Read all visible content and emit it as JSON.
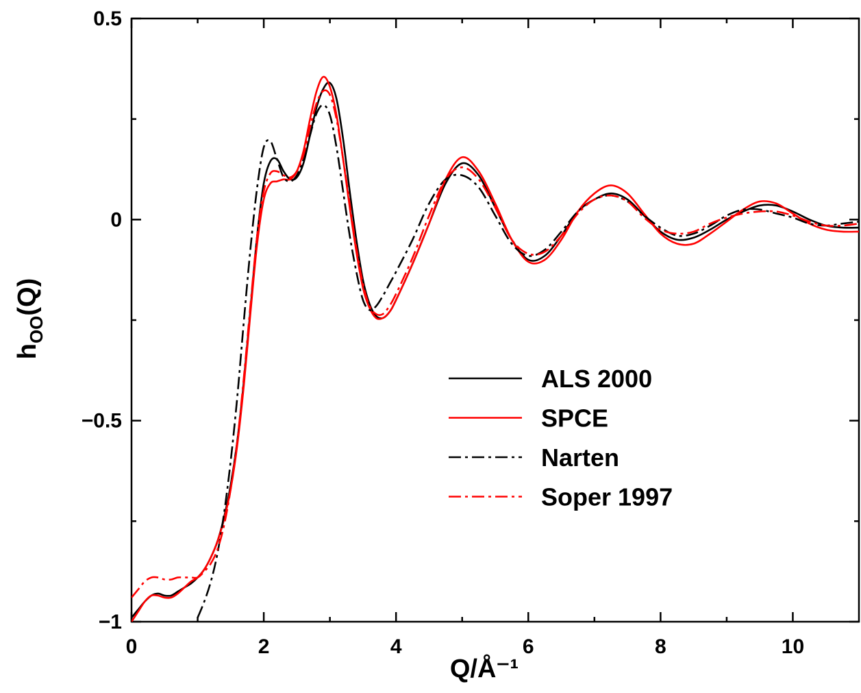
{
  "chart_data": {
    "type": "line",
    "xlabel": "Q/Å⁻¹",
    "ylabel": [
      "h",
      "OO",
      "(Q)"
    ],
    "xlim": [
      0,
      11
    ],
    "ylim": [
      -1,
      0.5
    ],
    "xticks": [
      0,
      2,
      4,
      6,
      8,
      10
    ],
    "yticks": [
      {
        "value": -1,
        "label": "−1"
      },
      {
        "value": -0.5,
        "label": "−0.5"
      },
      0,
      0.5
    ],
    "x_minor_ticks": [
      1,
      3,
      5,
      7,
      9
    ],
    "y_minor_ticks": [
      -0.75,
      -0.25,
      0.25
    ],
    "x": [
      0,
      0.1,
      0.2,
      0.3,
      0.4,
      0.5,
      0.6,
      0.7,
      0.8,
      0.9,
      1.0,
      1.1,
      1.2,
      1.3,
      1.4,
      1.5,
      1.6,
      1.7,
      1.8,
      1.9,
      2.0,
      2.1,
      2.2,
      2.3,
      2.4,
      2.5,
      2.6,
      2.7,
      2.8,
      2.9,
      3.0,
      3.1,
      3.2,
      3.3,
      3.4,
      3.5,
      3.6,
      3.7,
      3.8,
      3.9,
      4.0,
      4.25,
      4.5,
      4.75,
      5.0,
      5.25,
      5.5,
      5.75,
      6.0,
      6.25,
      6.5,
      6.75,
      7.0,
      7.25,
      7.5,
      7.75,
      8.0,
      8.25,
      8.5,
      8.75,
      9.0,
      9.25,
      9.5,
      9.75,
      10.0,
      10.25,
      10.5,
      10.75,
      11.0
    ],
    "series": [
      {
        "name": "ALS 2000",
        "color": "#000000",
        "dash": "solid",
        "values": [
          -0.99,
          -0.97,
          -0.95,
          -0.935,
          -0.93,
          -0.935,
          -0.935,
          -0.925,
          -0.915,
          -0.905,
          -0.89,
          -0.87,
          -0.84,
          -0.8,
          -0.74,
          -0.66,
          -0.55,
          -0.4,
          -0.22,
          -0.04,
          0.09,
          0.145,
          0.15,
          0.12,
          0.1,
          0.105,
          0.14,
          0.21,
          0.28,
          0.325,
          0.34,
          0.3,
          0.2,
          0.07,
          -0.05,
          -0.15,
          -0.21,
          -0.24,
          -0.245,
          -0.23,
          -0.2,
          -0.11,
          -0.01,
          0.09,
          0.14,
          0.11,
          0.03,
          -0.05,
          -0.1,
          -0.09,
          -0.04,
          0.02,
          0.05,
          0.065,
          0.05,
          0.01,
          -0.03,
          -0.05,
          -0.045,
          -0.025,
          0.0,
          0.02,
          0.035,
          0.035,
          0.02,
          0.0,
          -0.015,
          -0.02,
          -0.02
        ]
      },
      {
        "name": "SPCE",
        "color": "#ff0000",
        "dash": "solid",
        "values": [
          -1.0,
          -0.975,
          -0.95,
          -0.935,
          -0.935,
          -0.94,
          -0.94,
          -0.93,
          -0.915,
          -0.9,
          -0.89,
          -0.87,
          -0.84,
          -0.8,
          -0.745,
          -0.67,
          -0.56,
          -0.41,
          -0.23,
          -0.06,
          0.05,
          0.09,
          0.095,
          0.1,
          0.1,
          0.12,
          0.17,
          0.25,
          0.32,
          0.355,
          0.33,
          0.26,
          0.15,
          0.03,
          -0.08,
          -0.17,
          -0.22,
          -0.245,
          -0.245,
          -0.23,
          -0.2,
          -0.11,
          -0.01,
          0.1,
          0.155,
          0.12,
          0.04,
          -0.05,
          -0.105,
          -0.1,
          -0.05,
          0.02,
          0.065,
          0.085,
          0.065,
          0.015,
          -0.035,
          -0.06,
          -0.06,
          -0.035,
          -0.005,
          0.025,
          0.045,
          0.04,
          0.015,
          -0.01,
          -0.025,
          -0.03,
          -0.03
        ]
      },
      {
        "name": "Narten",
        "color": "#000000",
        "dash": "dashdot",
        "values": [
          null,
          null,
          null,
          null,
          null,
          null,
          null,
          null,
          null,
          null,
          -0.99,
          -0.95,
          -0.9,
          -0.83,
          -0.73,
          -0.6,
          -0.44,
          -0.25,
          -0.07,
          0.08,
          0.18,
          0.195,
          0.15,
          0.105,
          0.095,
          0.11,
          0.15,
          0.21,
          0.265,
          0.285,
          0.26,
          0.18,
          0.07,
          -0.04,
          -0.13,
          -0.2,
          -0.225,
          -0.215,
          -0.19,
          -0.16,
          -0.13,
          -0.05,
          0.04,
          0.1,
          0.11,
          0.08,
          0.01,
          -0.06,
          -0.09,
          -0.075,
          -0.03,
          0.02,
          0.05,
          0.06,
          0.045,
          0.01,
          -0.02,
          -0.04,
          -0.035,
          -0.015,
          0.01,
          0.025,
          0.025,
          0.015,
          0.005,
          -0.01,
          -0.015,
          -0.01,
          -0.005
        ]
      },
      {
        "name": "Soper 1997",
        "color": "#ff0000",
        "dash": "dashdot",
        "values": [
          -0.94,
          -0.92,
          -0.9,
          -0.89,
          -0.89,
          -0.895,
          -0.895,
          -0.89,
          -0.89,
          -0.89,
          -0.89,
          -0.875,
          -0.855,
          -0.82,
          -0.76,
          -0.67,
          -0.55,
          -0.39,
          -0.21,
          -0.04,
          0.07,
          0.115,
          0.12,
          0.11,
          0.105,
          0.12,
          0.16,
          0.23,
          0.29,
          0.32,
          0.31,
          0.25,
          0.15,
          0.04,
          -0.07,
          -0.16,
          -0.215,
          -0.235,
          -0.235,
          -0.215,
          -0.185,
          -0.095,
          0.01,
          0.1,
          0.13,
          0.1,
          0.03,
          -0.05,
          -0.085,
          -0.08,
          -0.04,
          0.015,
          0.05,
          0.06,
          0.045,
          0.005,
          -0.025,
          -0.035,
          -0.03,
          -0.01,
          0.005,
          0.015,
          0.02,
          0.02,
          0.01,
          -0.005,
          -0.015,
          -0.015,
          -0.01
        ]
      }
    ]
  }
}
